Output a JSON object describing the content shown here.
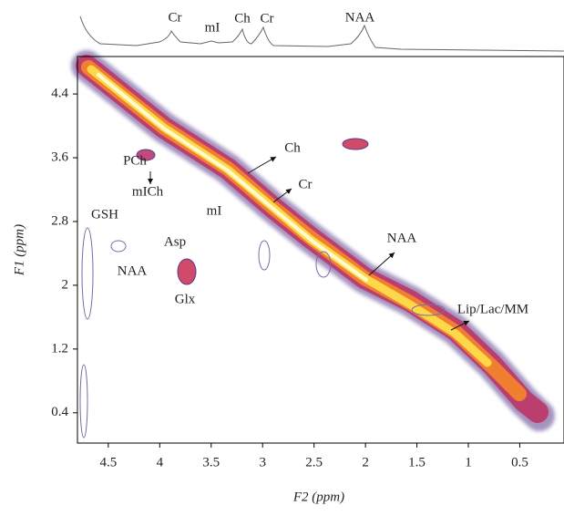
{
  "chart_data": {
    "type": "contour2d",
    "xlabel": "F2 (ppm)",
    "ylabel": "F1 (ppm)",
    "xlim": [
      4.8,
      0.07
    ],
    "ylim": [
      0.02,
      4.87
    ],
    "xticks": [
      4.5,
      4,
      3.5,
      3,
      2.5,
      2,
      1.5,
      1,
      0.5
    ],
    "yticks": [
      0.4,
      1.2,
      2,
      2.8,
      3.6,
      4.4
    ],
    "spectrum_labels": [
      "Cr",
      "mI",
      "Ch",
      "Cr",
      "NAA"
    ],
    "annotations": [
      "Ch",
      "Cr",
      "NAA",
      "Lip/Lac/MM",
      "PCh",
      "mICh",
      "GSH",
      "mI",
      "Asp",
      "NAA",
      "Glx"
    ]
  }
}
